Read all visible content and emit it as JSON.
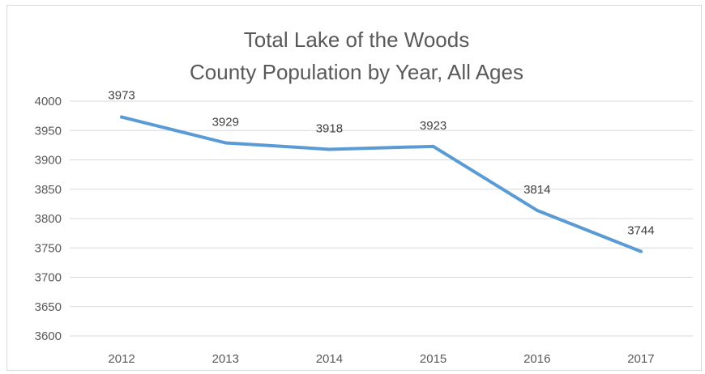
{
  "chart_data": {
    "type": "line",
    "title": [
      "Total Lake of the Woods",
      "County Population by Year, All Ages"
    ],
    "categories": [
      "2012",
      "2013",
      "2014",
      "2015",
      "2016",
      "2017"
    ],
    "series": [
      {
        "values": [
          3973,
          3929,
          3918,
          3923,
          3814,
          3744
        ]
      }
    ],
    "data_labels": [
      "3973",
      "3929",
      "3918",
      "3923",
      "3814",
      "3744"
    ],
    "ylim": [
      3600,
      4000
    ],
    "yticks": [
      4000,
      3950,
      3900,
      3850,
      3800,
      3750,
      3700,
      3650,
      3600
    ],
    "grid": true,
    "legend": "none",
    "line_color": "#5b9bd5",
    "grid_color": "#d9d9d9"
  }
}
